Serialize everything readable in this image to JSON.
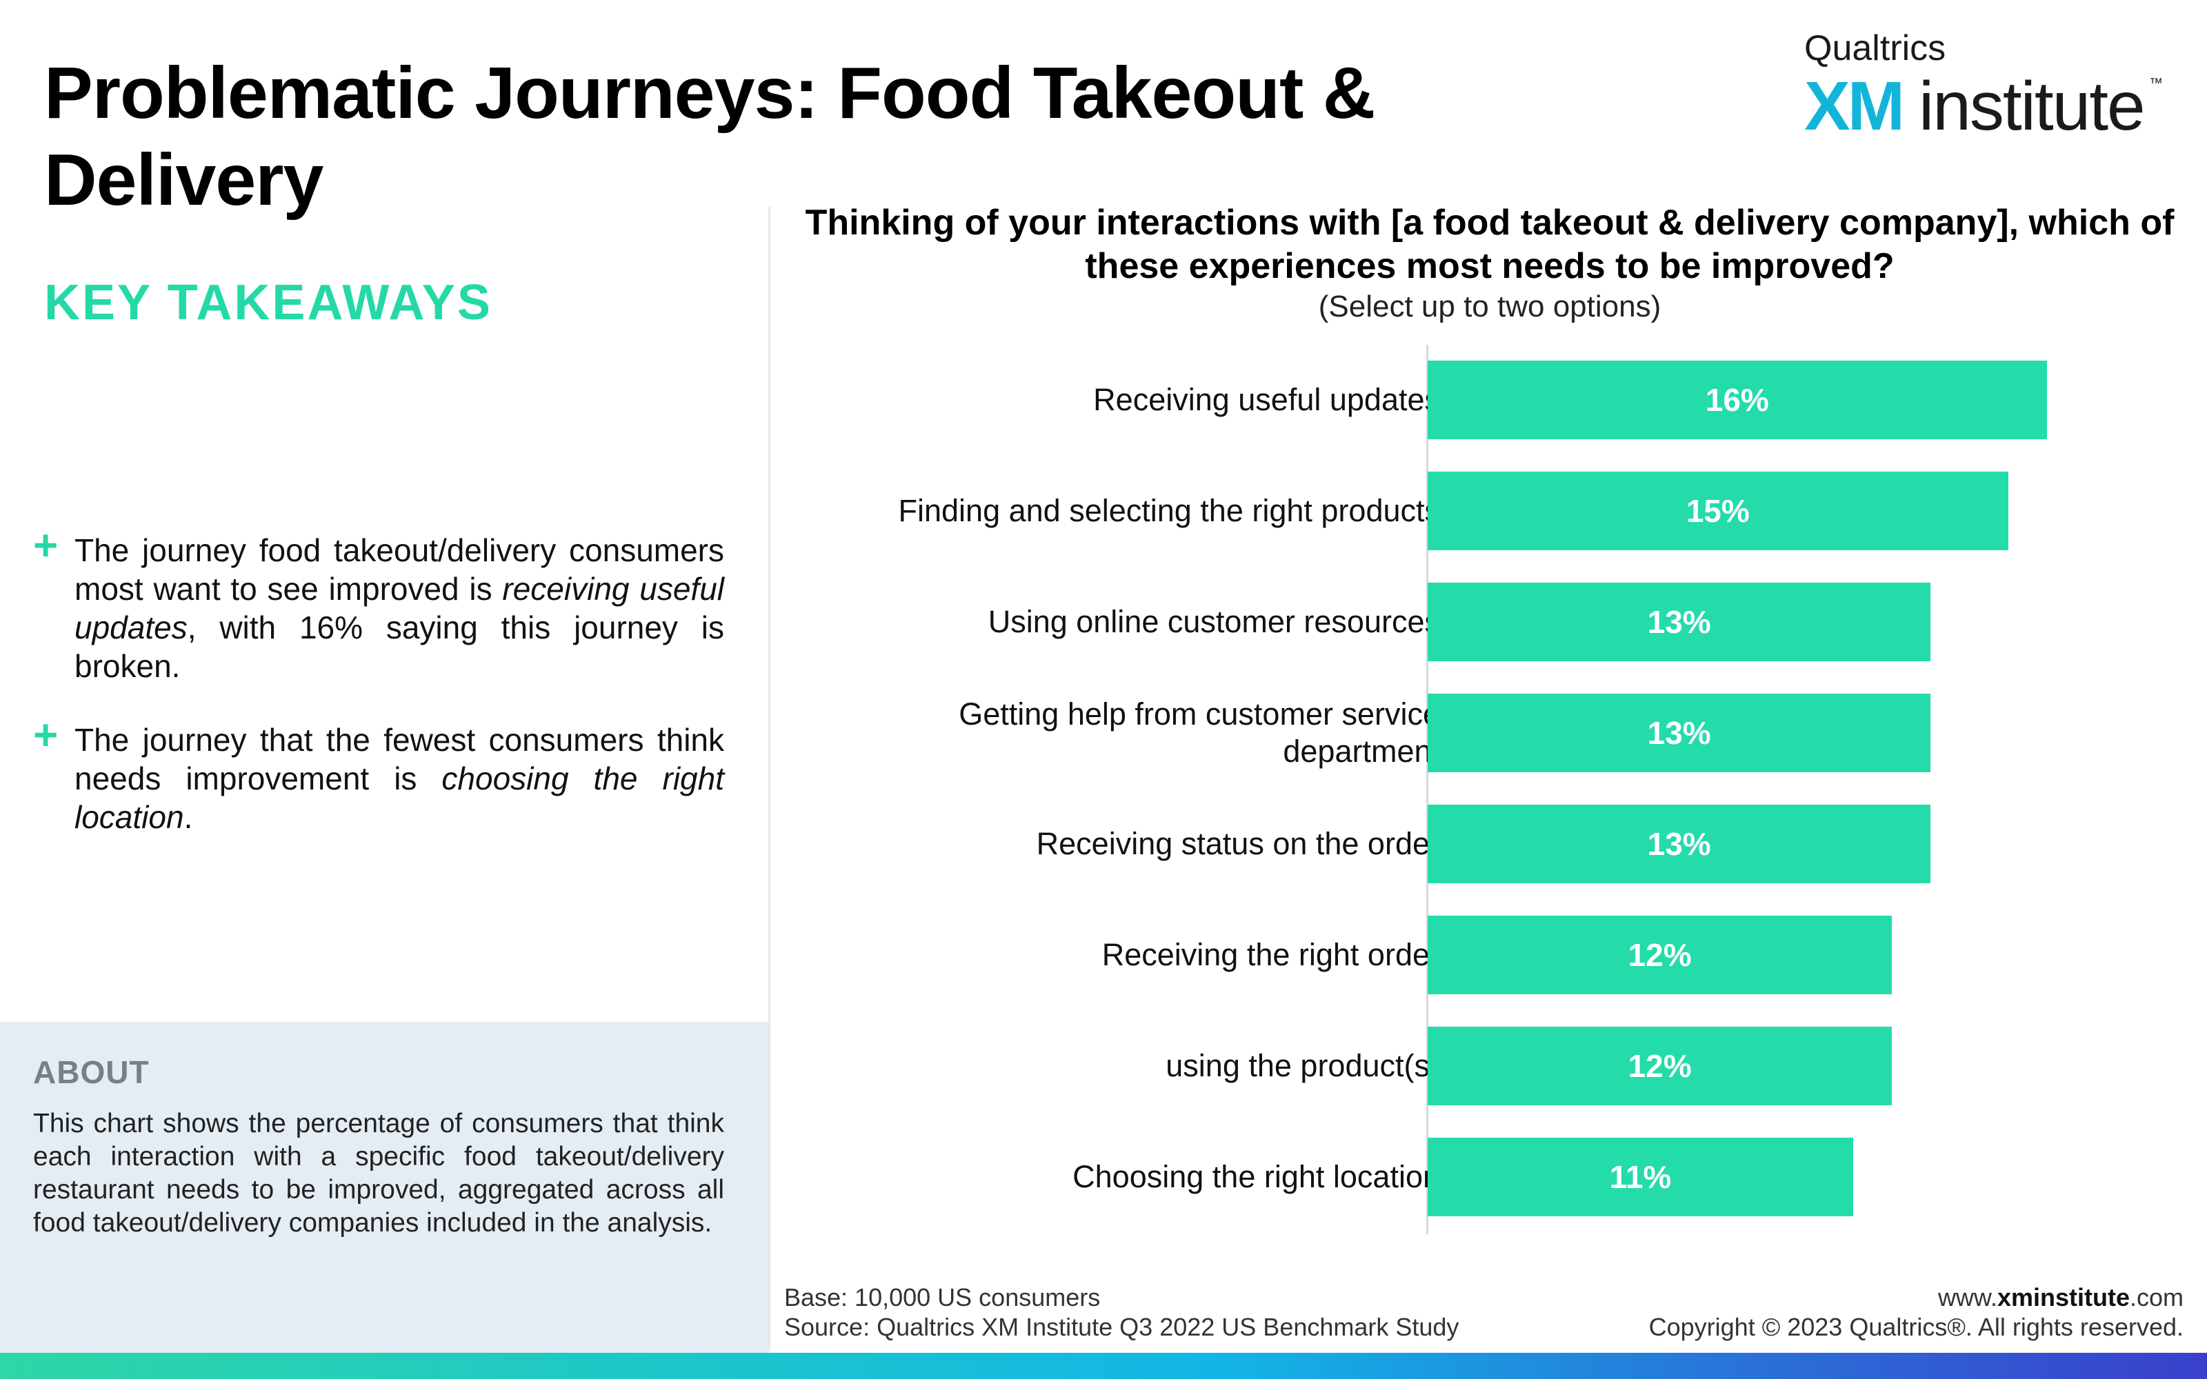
{
  "header": {
    "title": "Problematic Journeys: Food Takeout & Delivery",
    "logo": {
      "brand": "Qualtrics",
      "mark": "XM",
      "product": "institute",
      "tm": "™",
      "colors": {
        "mark": "#12b5d9"
      }
    }
  },
  "takeaways": {
    "heading": "KEY TAKEAWAYS",
    "bullet_icon": "plus-icon",
    "items": [
      {
        "pre": "The journey food takeout/delivery consumers most want to see improved is ",
        "em": "receiving useful updates",
        "post": ", with 16% saying this journey is broken."
      },
      {
        "pre": "The journey that the fewest consumers think needs improvement is ",
        "em": "choosing the right location",
        "post": "."
      }
    ]
  },
  "about": {
    "title": "ABOUT",
    "text": "This chart shows the percentage of consumers that think each interaction with a specific food takeout/delivery restaurant needs to be improved, aggregated across all food takeout/delivery companies included in the analysis."
  },
  "chart_data": {
    "type": "bar",
    "orientation": "horizontal",
    "title": "Thinking of your interactions with [a food takeout & delivery company], which of these experiences most needs to be improved?",
    "subtitle": "(Select up to two options)",
    "categories": [
      "Receiving useful updates",
      "Finding and selecting the right products",
      "Using online customer resources",
      "Getting help from customer service department",
      "Receiving status on the order",
      "Receiving the right order",
      "using the product(s)",
      "Choosing the right location"
    ],
    "values": [
      16,
      15,
      13,
      13,
      13,
      12,
      12,
      11
    ],
    "value_labels": [
      "16%",
      "15%",
      "13%",
      "13%",
      "13%",
      "12%",
      "12%",
      "11%"
    ],
    "unit": "%",
    "color": "#24dbaa",
    "grid": false,
    "legend": "none"
  },
  "footer": {
    "base": "Base: 10,000 US consumers",
    "source": "Source: Qualtrics XM Institute Q3 2022 US Benchmark Study",
    "url_pre": "www.",
    "url_bold": "xminstitute",
    "url_post": ".com",
    "copyright": "Copyright © 2023 Qualtrics®. All rights reserved."
  }
}
